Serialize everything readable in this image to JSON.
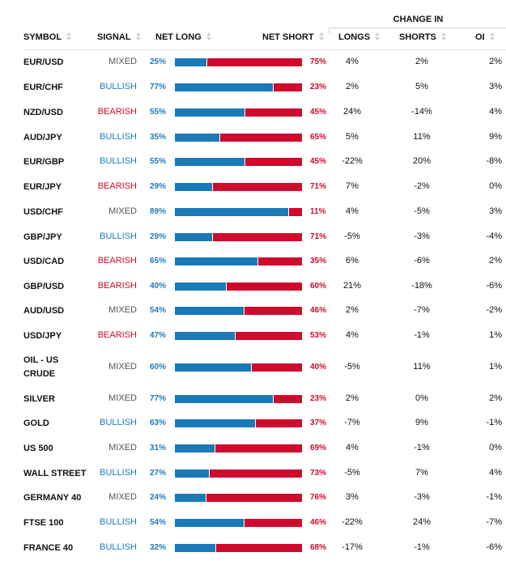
{
  "header": {
    "group_label": "CHANGE IN",
    "columns": [
      "SYMBOL",
      "SIGNAL",
      "NET LONG",
      "NET SHORT",
      "LONGS",
      "SHORTS",
      "OI"
    ]
  },
  "colors": {
    "long": "#1a7ab8",
    "short": "#cf0a2c",
    "mixed": "#555555"
  },
  "rows": [
    {
      "symbol": "EUR/USD",
      "signal": "MIXED",
      "net_long": "25%",
      "net_short": "75%",
      "longs": "4%",
      "shorts": "2%",
      "oi": "2%"
    },
    {
      "symbol": "EUR/CHF",
      "signal": "BULLISH",
      "net_long": "77%",
      "net_short": "23%",
      "longs": "2%",
      "shorts": "5%",
      "oi": "3%"
    },
    {
      "symbol": "NZD/USD",
      "signal": "BEARISH",
      "net_long": "55%",
      "net_short": "45%",
      "longs": "24%",
      "shorts": "-14%",
      "oi": "4%"
    },
    {
      "symbol": "AUD/JPY",
      "signal": "BULLISH",
      "net_long": "35%",
      "net_short": "65%",
      "longs": "5%",
      "shorts": "11%",
      "oi": "9%"
    },
    {
      "symbol": "EUR/GBP",
      "signal": "BULLISH",
      "net_long": "55%",
      "net_short": "45%",
      "longs": "-22%",
      "shorts": "20%",
      "oi": "-8%"
    },
    {
      "symbol": "EUR/JPY",
      "signal": "BEARISH",
      "net_long": "29%",
      "net_short": "71%",
      "longs": "7%",
      "shorts": "-2%",
      "oi": "0%"
    },
    {
      "symbol": "USD/CHF",
      "signal": "MIXED",
      "net_long": "89%",
      "net_short": "11%",
      "longs": "4%",
      "shorts": "-5%",
      "oi": "3%"
    },
    {
      "symbol": "GBP/JPY",
      "signal": "BULLISH",
      "net_long": "29%",
      "net_short": "71%",
      "longs": "-5%",
      "shorts": "-3%",
      "oi": "-4%"
    },
    {
      "symbol": "USD/CAD",
      "signal": "BEARISH",
      "net_long": "65%",
      "net_short": "35%",
      "longs": "6%",
      "shorts": "-6%",
      "oi": "2%"
    },
    {
      "symbol": "GBP/USD",
      "signal": "BEARISH",
      "net_long": "40%",
      "net_short": "60%",
      "longs": "21%",
      "shorts": "-18%",
      "oi": "-6%"
    },
    {
      "symbol": "AUD/USD",
      "signal": "MIXED",
      "net_long": "54%",
      "net_short": "46%",
      "longs": "2%",
      "shorts": "-7%",
      "oi": "-2%"
    },
    {
      "symbol": "USD/JPY",
      "signal": "BEARISH",
      "net_long": "47%",
      "net_short": "53%",
      "longs": "4%",
      "shorts": "-1%",
      "oi": "1%"
    },
    {
      "symbol": "OIL - US CRUDE",
      "signal": "MIXED",
      "net_long": "60%",
      "net_short": "40%",
      "longs": "-5%",
      "shorts": "11%",
      "oi": "1%"
    },
    {
      "symbol": "SILVER",
      "signal": "MIXED",
      "net_long": "77%",
      "net_short": "23%",
      "longs": "2%",
      "shorts": "0%",
      "oi": "2%"
    },
    {
      "symbol": "GOLD",
      "signal": "BULLISH",
      "net_long": "63%",
      "net_short": "37%",
      "longs": "-7%",
      "shorts": "9%",
      "oi": "-1%"
    },
    {
      "symbol": "US 500",
      "signal": "MIXED",
      "net_long": "31%",
      "net_short": "69%",
      "longs": "4%",
      "shorts": "-1%",
      "oi": "0%"
    },
    {
      "symbol": "WALL STREET",
      "signal": "BULLISH",
      "net_long": "27%",
      "net_short": "73%",
      "longs": "-5%",
      "shorts": "7%",
      "oi": "4%"
    },
    {
      "symbol": "GERMANY 40",
      "signal": "MIXED",
      "net_long": "24%",
      "net_short": "76%",
      "longs": "3%",
      "shorts": "-3%",
      "oi": "-1%"
    },
    {
      "symbol": "FTSE 100",
      "signal": "BULLISH",
      "net_long": "54%",
      "net_short": "46%",
      "longs": "-22%",
      "shorts": "24%",
      "oi": "-7%"
    },
    {
      "symbol": "FRANCE 40",
      "signal": "BULLISH",
      "net_long": "32%",
      "net_short": "68%",
      "longs": "-17%",
      "shorts": "-1%",
      "oi": "-6%"
    }
  ]
}
